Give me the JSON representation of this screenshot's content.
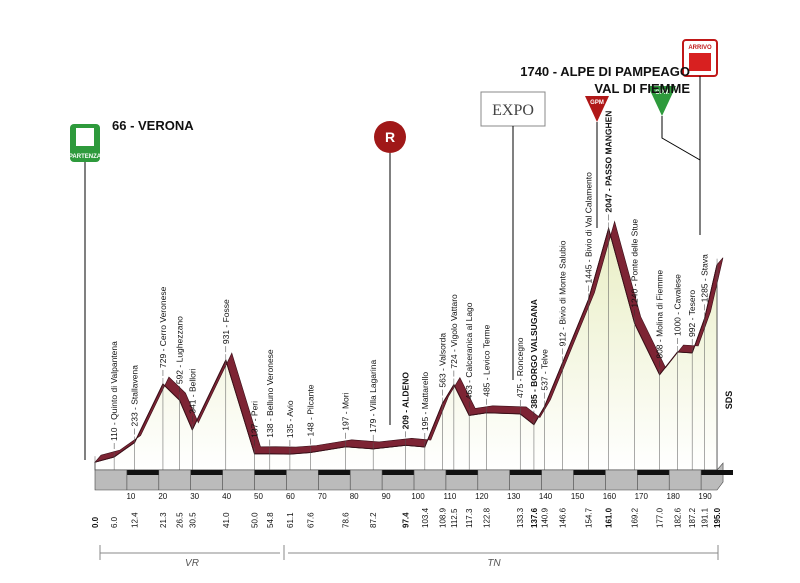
{
  "start": {
    "label": "66 - VERONA",
    "badge": "PARTENZA",
    "km": 0,
    "km_label": "0.0",
    "elevation": 66
  },
  "finish": {
    "label": "1740 - ALPE DI PAMPEAGO",
    "sublabel": "VAL DI FIEMME",
    "badge": "ARRIVO",
    "km": 195,
    "km_label": "195.0",
    "elevation": 1740
  },
  "refuel_badge": "R",
  "gpm_badges": [
    "GPM",
    "GPM"
  ],
  "sponsor": "EXPO",
  "regions": [
    {
      "label": "VR"
    },
    {
      "label": "TN"
    }
  ],
  "side_label": "SDS",
  "km_ticks": [
    10,
    20,
    30,
    40,
    50,
    60,
    70,
    80,
    90,
    100,
    110,
    120,
    130,
    140,
    150,
    160,
    170,
    180,
    190
  ],
  "waypoints": [
    {
      "label": "110 - Quinto di Valpantena",
      "elevation": 110,
      "km": 6,
      "km_label": "6.0"
    },
    {
      "label": "233 - Stallavena",
      "elevation": 233,
      "km": 12.4,
      "km_label": "12.4"
    },
    {
      "label": "729 - Cerro Veronese",
      "elevation": 729,
      "km": 21.3,
      "km_label": "21.3"
    },
    {
      "label": "592 - Lughezzano",
      "elevation": 592,
      "km": 26.5,
      "km_label": "26.5"
    },
    {
      "label": "341 - Bellori",
      "elevation": 341,
      "km": 30.5,
      "km_label": "30.5"
    },
    {
      "label": "931 - Fosse",
      "elevation": 931,
      "km": 41,
      "km_label": "41.0"
    },
    {
      "label": "137 - Peri",
      "elevation": 137,
      "km": 50,
      "km_label": "50.0"
    },
    {
      "label": "138 - Belluno Veronese",
      "elevation": 138,
      "km": 54.8,
      "km_label": "54.8"
    },
    {
      "label": "135 - Avio",
      "elevation": 135,
      "km": 61.1,
      "km_label": "61.1"
    },
    {
      "label": "148 - Pilcante",
      "elevation": 148,
      "km": 67.6,
      "km_label": "67.6"
    },
    {
      "label": "197 - Mori",
      "elevation": 197,
      "km": 78.6,
      "km_label": "78.6"
    },
    {
      "label": "179 - Villa Lagarina",
      "elevation": 179,
      "km": 87.2,
      "km_label": "87.2"
    },
    {
      "label": "209 - ALDENO",
      "elevation": 209,
      "km": 97.4,
      "km_label": "97.4",
      "bold": true
    },
    {
      "label": "195 - Mattarello",
      "elevation": 195,
      "km": 103.4,
      "km_label": "103.4"
    },
    {
      "label": "563 - Valsorda",
      "elevation": 563,
      "km": 108.9,
      "km_label": "108.9"
    },
    {
      "label": "724 - Vigolo Vattaro",
      "elevation": 724,
      "km": 112.5,
      "km_label": "112.5"
    },
    {
      "label": "463 - Calceranica al Lago",
      "elevation": 463,
      "km": 117.3,
      "km_label": "117.3"
    },
    {
      "label": "485 - Levico Terme",
      "elevation": 485,
      "km": 122.8,
      "km_label": "122.8"
    },
    {
      "label": "475 - Roncegno",
      "elevation": 475,
      "km": 133.3,
      "km_label": "133.3"
    },
    {
      "label": "385 - BORGO VALSUGANA",
      "elevation": 385,
      "km": 137.6,
      "km_label": "137.6",
      "bold": true
    },
    {
      "label": "537 - Telve",
      "elevation": 537,
      "km": 140.9,
      "km_label": "140.9"
    },
    {
      "label": "912 - Bivio di Monte Salubio",
      "elevation": 912,
      "km": 146.6,
      "km_label": "146.6"
    },
    {
      "label": "1445 - Bivio di Val Calamento",
      "elevation": 1445,
      "km": 154.7,
      "km_label": "154.7"
    },
    {
      "label": "2047 - PASSO MANGHEN",
      "elevation": 2047,
      "km": 161,
      "km_label": "161.0",
      "bold": true
    },
    {
      "label": "1240 - Ponte delle Stue",
      "elevation": 1240,
      "km": 169.2,
      "km_label": "169.2"
    },
    {
      "label": "808 - Molina di Fiemme",
      "elevation": 808,
      "km": 177,
      "km_label": "177.0"
    },
    {
      "label": "1000 - Cavalese",
      "elevation": 1000,
      "km": 182.6,
      "km_label": "182.6"
    },
    {
      "label": "992 - Tesero",
      "elevation": 992,
      "km": 187.2,
      "km_label": "187.2"
    },
    {
      "label": "1285 - Stava",
      "elevation": 1285,
      "km": 191.1,
      "km_label": "191.1"
    }
  ]
}
